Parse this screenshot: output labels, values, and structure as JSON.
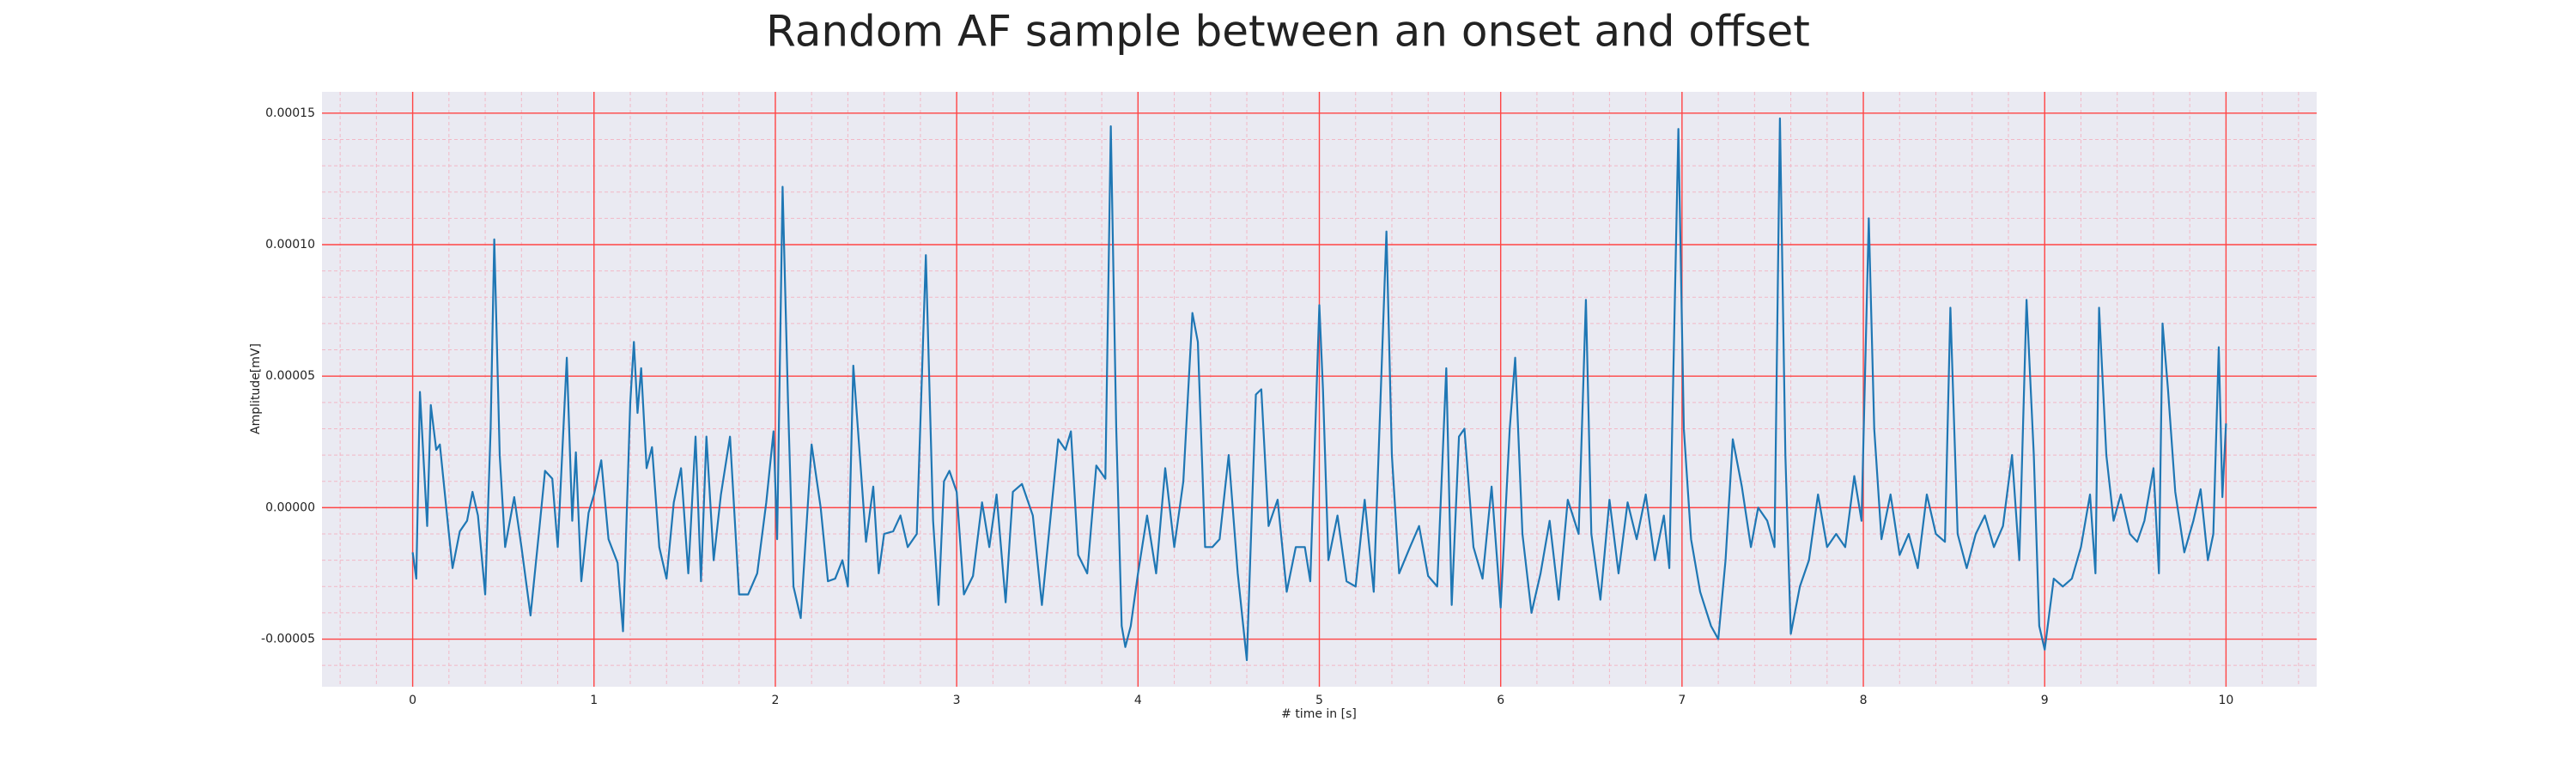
{
  "chart_data": {
    "type": "line",
    "title": "Random AF sample between an onset and offset",
    "xlabel": "# time in [s]",
    "ylabel": "Amplitude[mV]",
    "color": "#1f77b4",
    "grid": true,
    "minor_grid": true,
    "grid_color": "#ff4444",
    "minor_grid_color": "#f2b8c6",
    "background": "#eaeaf2",
    "xlim": [
      -0.5,
      10.5
    ],
    "xticks": [
      0,
      1,
      2,
      3,
      4,
      5,
      6,
      7,
      8,
      9,
      10
    ],
    "ylim": [
      -6.81e-05,
      0.0001581
    ],
    "yticks": [
      {
        "value": -5e-05,
        "label": "-0.00005"
      },
      {
        "value": 0,
        "label": "0.00000"
      },
      {
        "value": 5e-05,
        "label": "0.00005"
      },
      {
        "value": 0.0001,
        "label": "0.00010"
      },
      {
        "value": 0.00015,
        "label": "0.00015"
      }
    ],
    "x": [
      0,
      0.02,
      0.04,
      0.08,
      0.1,
      0.13,
      0.15,
      0.2,
      0.22,
      0.26,
      0.3,
      0.33,
      0.36,
      0.4,
      0.43,
      0.45,
      0.48,
      0.51,
      0.56,
      0.6,
      0.65,
      0.7,
      0.73,
      0.77,
      0.8,
      0.85,
      0.88,
      0.9,
      0.93,
      0.97,
      1.0,
      1.04,
      1.08,
      1.13,
      1.16,
      1.2,
      1.22,
      1.24,
      1.26,
      1.29,
      1.32,
      1.36,
      1.4,
      1.44,
      1.48,
      1.52,
      1.56,
      1.59,
      1.62,
      1.66,
      1.7,
      1.75,
      1.8,
      1.85,
      1.9,
      1.95,
      1.99,
      2.01,
      2.04,
      2.07,
      2.1,
      2.14,
      2.2,
      2.25,
      2.29,
      2.33,
      2.37,
      2.4,
      2.43,
      2.47,
      2.5,
      2.54,
      2.57,
      2.6,
      2.65,
      2.69,
      2.73,
      2.78,
      2.83,
      2.87,
      2.9,
      2.93,
      2.96,
      3.0,
      3.04,
      3.09,
      3.14,
      3.18,
      3.22,
      3.27,
      3.31,
      3.36,
      3.42,
      3.47,
      3.52,
      3.56,
      3.6,
      3.63,
      3.67,
      3.72,
      3.77,
      3.82,
      3.85,
      3.88,
      3.91,
      3.93,
      3.96,
      4.0,
      4.05,
      4.1,
      4.15,
      4.2,
      4.25,
      4.3,
      4.33,
      4.37,
      4.41,
      4.45,
      4.5,
      4.55,
      4.6,
      4.65,
      4.68,
      4.72,
      4.77,
      4.82,
      4.87,
      4.92,
      4.95,
      5.0,
      5.02,
      5.05,
      5.1,
      5.15,
      5.2,
      5.25,
      5.3,
      5.37,
      5.4,
      5.44,
      5.5,
      5.55,
      5.6,
      5.65,
      5.7,
      5.73,
      5.77,
      5.8,
      5.85,
      5.9,
      5.95,
      6.0,
      6.05,
      6.08,
      6.12,
      6.17,
      6.22,
      6.27,
      6.32,
      6.37,
      6.43,
      6.47,
      6.5,
      6.55,
      6.6,
      6.65,
      6.7,
      6.75,
      6.8,
      6.85,
      6.9,
      6.93,
      6.98,
      7.01,
      7.05,
      7.1,
      7.16,
      7.2,
      7.24,
      7.28,
      7.33,
      7.38,
      7.42,
      7.47,
      7.51,
      7.54,
      7.57,
      7.6,
      7.65,
      7.7,
      7.75,
      7.8,
      7.85,
      7.9,
      7.95,
      7.99,
      8.03,
      8.06,
      8.1,
      8.15,
      8.2,
      8.25,
      8.3,
      8.35,
      8.4,
      8.45,
      8.48,
      8.52,
      8.57,
      8.62,
      8.67,
      8.72,
      8.77,
      8.82,
      8.86,
      8.9,
      8.94,
      8.97,
      9.0,
      9.05,
      9.1,
      9.15,
      9.2,
      9.25,
      9.28,
      9.3,
      9.34,
      9.38,
      9.42,
      9.47,
      9.51,
      9.55,
      9.6,
      9.63,
      9.65,
      9.68,
      9.72,
      9.77,
      9.82,
      9.86,
      9.9,
      9.93,
      9.96,
      9.98,
      10.0
    ],
    "values": [
      -1.7e-05,
      -2.7e-05,
      4.4e-05,
      -7e-06,
      3.9e-05,
      2.2e-05,
      2.4e-05,
      -1e-05,
      -2.3e-05,
      -9e-06,
      -5e-06,
      6e-06,
      -3e-06,
      -3.3e-05,
      3e-05,
      0.000102,
      2e-05,
      -1.5e-05,
      4e-06,
      -1.5e-05,
      -4.1e-05,
      -7e-06,
      1.4e-05,
      1.1e-05,
      -1.5e-05,
      5.7e-05,
      -5e-06,
      2.1e-05,
      -2.8e-05,
      -2e-06,
      5e-06,
      1.8e-05,
      -1.2e-05,
      -2.1e-05,
      -4.7e-05,
      4e-05,
      6.3e-05,
      3.6e-05,
      5.3e-05,
      1.5e-05,
      2.3e-05,
      -1.5e-05,
      -2.7e-05,
      2e-06,
      1.5e-05,
      -2.5e-05,
      2.7e-05,
      -2.8e-05,
      2.7e-05,
      -2e-05,
      5e-06,
      2.7e-05,
      -3.3e-05,
      -3.3e-05,
      -2.5e-05,
      2e-06,
      2.9e-05,
      -1.2e-05,
      0.000122,
      4e-05,
      -3e-05,
      -4.2e-05,
      2.4e-05,
      0,
      -2.8e-05,
      -2.7e-05,
      -2e-05,
      -3e-05,
      5.4e-05,
      1.6e-05,
      -1.3e-05,
      8e-06,
      -2.5e-05,
      -1e-05,
      -9e-06,
      -3e-06,
      -1.5e-05,
      -1e-05,
      9.6e-05,
      -5e-06,
      -3.7e-05,
      1e-05,
      1.4e-05,
      6e-06,
      -3.3e-05,
      -2.6e-05,
      2e-06,
      -1.5e-05,
      5e-06,
      -3.6e-05,
      6e-06,
      9e-06,
      -3e-06,
      -3.7e-05,
      -2e-06,
      2.6e-05,
      2.2e-05,
      2.9e-05,
      -1.8e-05,
      -2.5e-05,
      1.6e-05,
      1.1e-05,
      0.000145,
      3e-05,
      -4.5e-05,
      -5.3e-05,
      -4.5e-05,
      -2.5e-05,
      -3e-06,
      -2.5e-05,
      1.5e-05,
      -1.5e-05,
      1e-05,
      7.4e-05,
      6.3e-05,
      -1.5e-05,
      -1.5e-05,
      -1.2e-05,
      2e-05,
      -2.5e-05,
      -5.8e-05,
      4.3e-05,
      4.5e-05,
      -7e-06,
      3e-06,
      -3.2e-05,
      -1.5e-05,
      -1.5e-05,
      -2.8e-05,
      7.7e-05,
      4.5e-05,
      -2e-05,
      -3e-06,
      -2.8e-05,
      -3e-05,
      3e-06,
      -3.2e-05,
      0.000105,
      2e-05,
      -2.5e-05,
      -1.5e-05,
      -7e-06,
      -2.6e-05,
      -3e-05,
      5.3e-05,
      -3.7e-05,
      2.7e-05,
      3e-05,
      -1.5e-05,
      -2.7e-05,
      8e-06,
      -3.8e-05,
      3e-05,
      5.7e-05,
      -1e-05,
      -4e-05,
      -2.5e-05,
      -5e-06,
      -3.5e-05,
      3e-06,
      -1e-05,
      7.9e-05,
      -1e-05,
      -3.5e-05,
      3e-06,
      -2.5e-05,
      2e-06,
      -1.2e-05,
      5e-06,
      -2e-05,
      -3e-06,
      -2.3e-05,
      0.000144,
      3e-05,
      -1.2e-05,
      -3.2e-05,
      -4.5e-05,
      -5e-05,
      -2e-05,
      2.6e-05,
      8e-06,
      -1.5e-05,
      0,
      -5e-06,
      -1.5e-05,
      0.000148,
      2e-05,
      -4.8e-05,
      -3e-05,
      -2e-05,
      5e-06,
      -1.5e-05,
      -1e-05,
      -1.5e-05,
      1.2e-05,
      -5e-06,
      0.00011,
      3e-05,
      -1.2e-05,
      5e-06,
      -1.8e-05,
      -1e-05,
      -2.3e-05,
      5e-06,
      -1e-05,
      -1.3e-05,
      7.6e-05,
      -1e-05,
      -2.3e-05,
      -1e-05,
      -3e-06,
      -1.5e-05,
      -7e-06,
      2e-05,
      -2e-05,
      7.9e-05,
      2e-05,
      -4.5e-05,
      -5.4e-05,
      -2.7e-05,
      -3e-05,
      -2.7e-05,
      -1.5e-05,
      5e-06,
      -2.5e-05,
      7.6e-05,
      2e-05,
      -5e-06,
      5e-06,
      -1e-05,
      -1.3e-05,
      -5e-06,
      1.5e-05,
      -2.5e-05,
      7e-05,
      4.5e-05,
      6e-06,
      -1.7e-05,
      -5e-06,
      7e-06,
      -2e-05,
      -1e-05,
      6.1e-05,
      4e-06,
      3.2e-05
    ]
  }
}
